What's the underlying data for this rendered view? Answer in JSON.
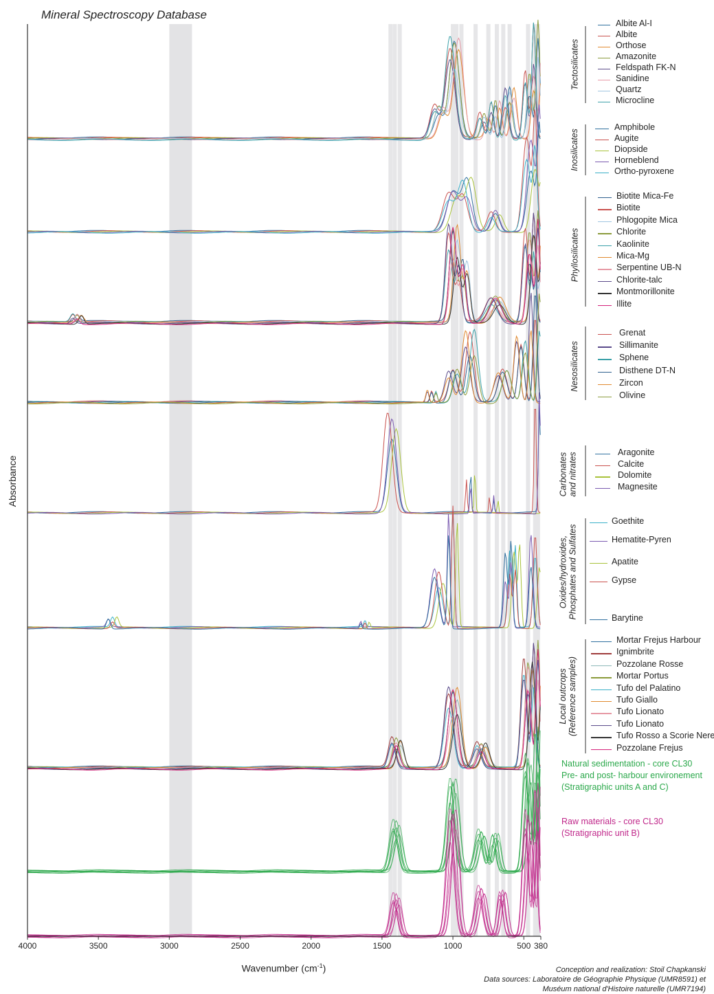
{
  "title": "Mineral Spectroscopy Database",
  "chart_data": {
    "type": "line",
    "xlabel": "Wavenumber (cm",
    "xlabel_sup": "-1",
    "xlabel_end": ")",
    "ylabel": "Absorbance",
    "xlim": [
      4000,
      380
    ],
    "x_reversed": true,
    "x_ticks": [
      4000,
      3500,
      3000,
      2500,
      2000,
      1500,
      1000,
      500,
      380
    ],
    "shaded_bands": [
      [
        3000,
        2840
      ]
    ],
    "reference_lines": [
      1440,
      1410,
      1375,
      1000,
      975,
      940,
      840,
      750,
      690,
      645,
      600,
      470,
      420,
      400
    ],
    "groups": [
      {
        "name": "Tectosilicates",
        "series": [
          {
            "name": "Albite Al-I",
            "color": "#2e6f9e"
          },
          {
            "name": "Albite",
            "color": "#c9504d"
          },
          {
            "name": "Orthose",
            "color": "#e0892f"
          },
          {
            "name": "Amazonite",
            "color": "#8a9a3a"
          },
          {
            "name": "Feldspath FK-N",
            "color": "#5a4a8a"
          },
          {
            "name": "Sanidine",
            "color": "#e79aa6"
          },
          {
            "name": "Quartz",
            "color": "#9fc4e0"
          },
          {
            "name": "Microcline",
            "color": "#3aa0a8"
          }
        ]
      },
      {
        "name": "Inosilicates",
        "series": [
          {
            "name": "Amphibole",
            "color": "#2e6f9e"
          },
          {
            "name": "Augite",
            "color": "#c9504d"
          },
          {
            "name": "Diopside",
            "color": "#a8c23a"
          },
          {
            "name": "Horneblend",
            "color": "#7a5ab0"
          },
          {
            "name": "Ortho-pyroxene",
            "color": "#3ab0c8"
          }
        ]
      },
      {
        "name": "Phyllosilicates",
        "series": [
          {
            "name": "Biotite Mica-Fe",
            "color": "#2e5f8e"
          },
          {
            "name": "Biotite",
            "color": "#c9504d"
          },
          {
            "name": "Phlogopite Mica",
            "color": "#9fc4e0"
          },
          {
            "name": "Chlorite",
            "color": "#8a9a3a"
          },
          {
            "name": "Kaolinite",
            "color": "#3aa0a8"
          },
          {
            "name": "Mica-Mg",
            "color": "#e0892f"
          },
          {
            "name": "Serpentine UB-N",
            "color": "#e79aa6"
          },
          {
            "name": "Chlorite-talc",
            "color": "#5a4a8a"
          },
          {
            "name": "Montmorillonite",
            "color": "#333333"
          },
          {
            "name": "Illite",
            "color": "#d4217a"
          }
        ]
      },
      {
        "name": "Nesosilicates",
        "series": [
          {
            "name": "Grenat",
            "color": "#c9504d"
          },
          {
            "name": "Sillimanite",
            "color": "#5a4a8a"
          },
          {
            "name": "Sphene",
            "color": "#3aa0a8"
          },
          {
            "name": "Disthene DT-N",
            "color": "#2e5f8e"
          },
          {
            "name": "Zircon",
            "color": "#e0892f"
          },
          {
            "name": "Olivine",
            "color": "#8a9a3a"
          }
        ]
      },
      {
        "name": "Carbonates and nitrates",
        "series": [
          {
            "name": "Aragonite",
            "color": "#2e6f9e"
          },
          {
            "name": "Calcite",
            "color": "#c9504d"
          },
          {
            "name": "Dolomite",
            "color": "#a8c23a"
          },
          {
            "name": "Magnesite",
            "color": "#7a5ab0"
          }
        ]
      },
      {
        "name": "Oxides/hydroxides, Phosphates and Sulfates",
        "series": [
          {
            "name": "Goethite",
            "color": "#3ab0c8"
          },
          {
            "name": "Hematite-Pyren",
            "color": "#7a5ab0"
          },
          {
            "name": "Apatite",
            "color": "#a8c23a"
          },
          {
            "name": "Gypse",
            "color": "#c9504d"
          },
          {
            "name": "Barytine",
            "color": "#2e6f9e"
          }
        ]
      },
      {
        "name": "Local outcrops (Reference samples)",
        "series": [
          {
            "name": "Mortar Frejus Harbour",
            "color": "#2e6f9e"
          },
          {
            "name": "Ignimbrite",
            "color": "#9e3a3a"
          },
          {
            "name": "Pozzolane Rosse",
            "color": "#8fb8b8"
          },
          {
            "name": "Mortar Portus",
            "color": "#8a9a3a"
          },
          {
            "name": "Tufo del Palatino",
            "color": "#3ab0c8"
          },
          {
            "name": "Tufo Giallo",
            "color": "#e0892f"
          },
          {
            "name": "Tufo Lionato",
            "color": "#e79aa6"
          },
          {
            "name": "Tufo Lionato",
            "color": "#5a4a8a"
          },
          {
            "name": "Tufo Rosso a Scorie Nere",
            "color": "#333333"
          },
          {
            "name": "Pozzolane Frejus",
            "color": "#d4217a"
          }
        ]
      }
    ],
    "sample_notes": [
      {
        "lines": [
          "Natural sedimentation  - core CL30",
          "Pre- and post- harbour environement",
          "(Stratigraphic units A and C)"
        ],
        "color": "#2aa84a"
      },
      {
        "lines": [
          "Raw materials - core CL30",
          "(Stratigraphic unit B)"
        ],
        "color": "#c0278a"
      }
    ]
  },
  "credits": {
    "line1": "Conception and realization: Stoil Chapkanski",
    "line2": "Data sources: Laboratoire de Géographie Physique (UMR8591) et",
    "line3": "Muséum national d'Histoire naturelle (UMR7194)"
  }
}
